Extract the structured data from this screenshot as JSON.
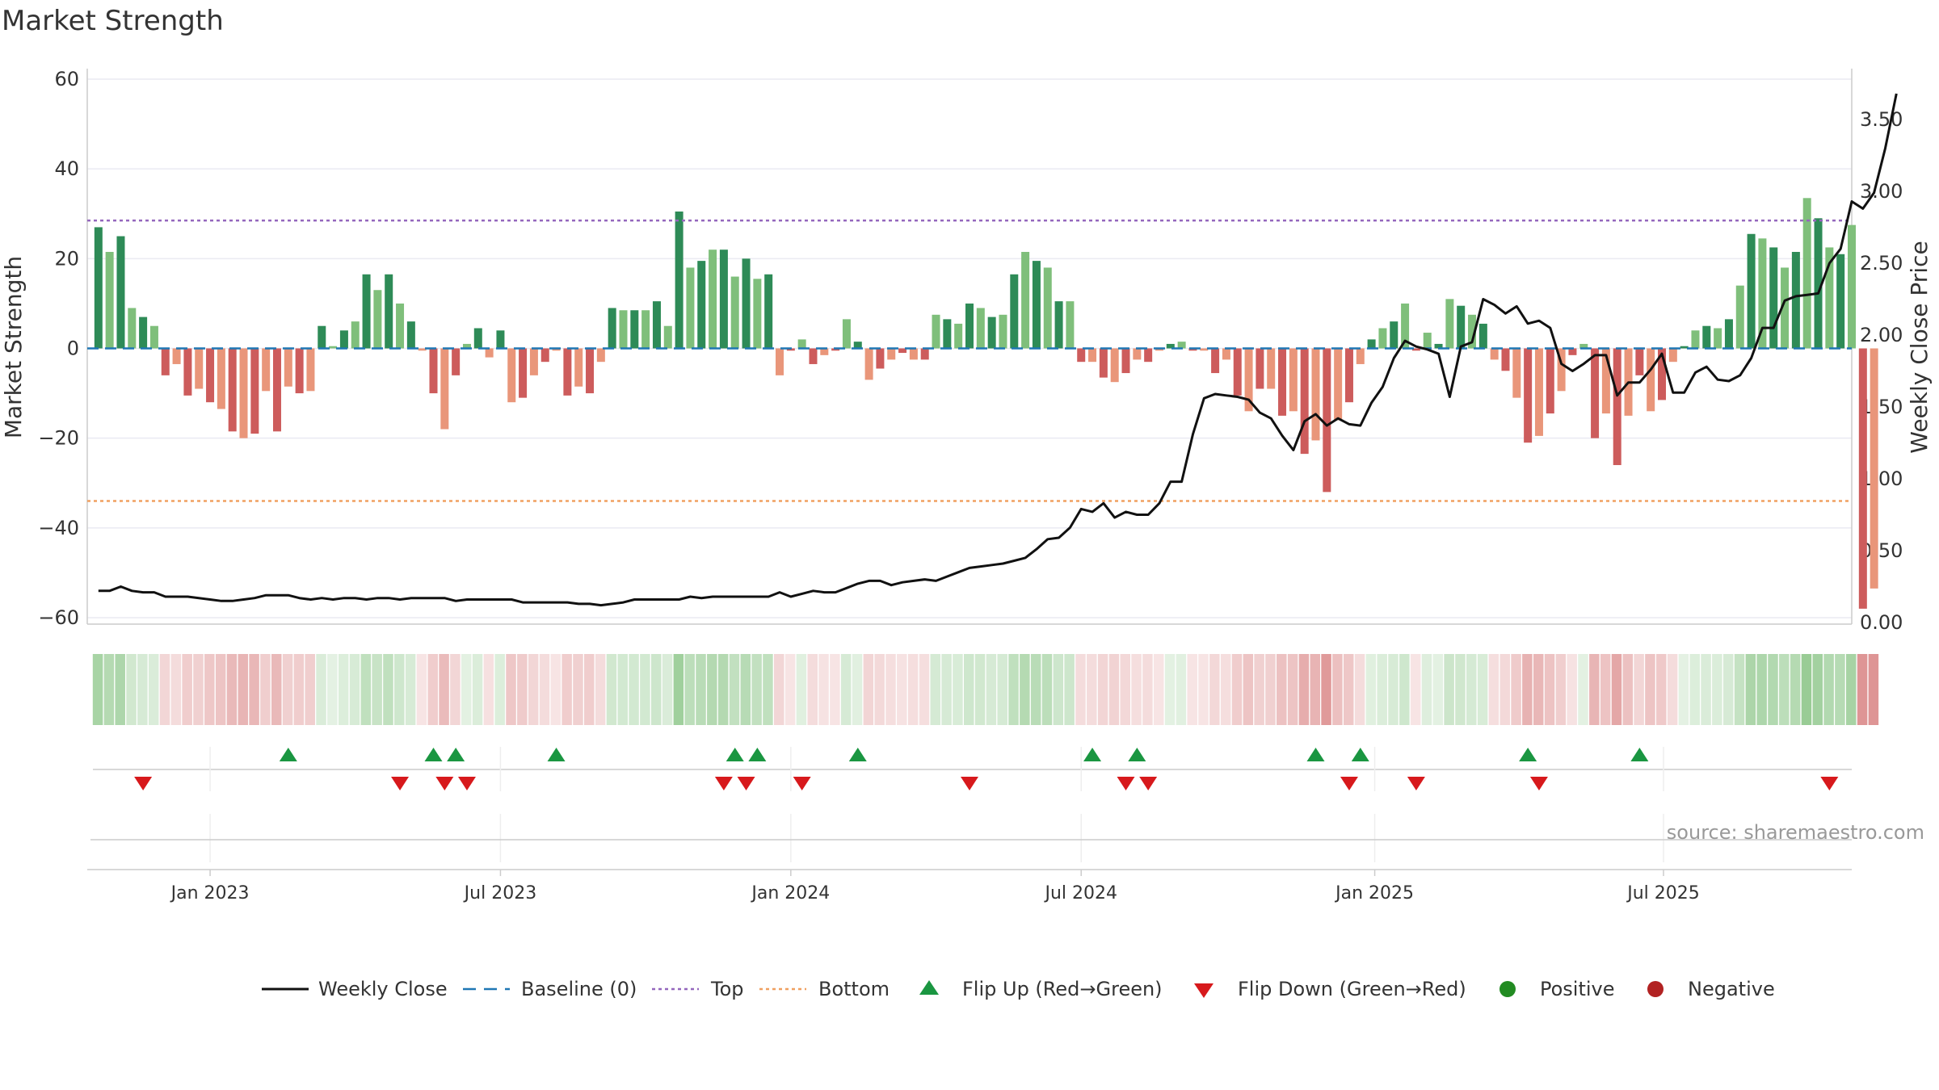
{
  "chart_data": {
    "type": "bar",
    "title": "Market Strength",
    "source_text": "source: sharemaestro.com",
    "left_axis": {
      "label": "Market Strength",
      "range": [
        -60,
        60
      ],
      "ticks": [
        "60",
        "40",
        "20",
        "0",
        "−20",
        "−40",
        "−60"
      ]
    },
    "right_axis": {
      "label": "Weekly Close Price",
      "range": [
        0.0,
        3.8
      ],
      "ticks": [
        "3.50",
        "3.00",
        "2.50",
        "2.00",
        "1.50",
        "1.00",
        "0.50",
        "0.00"
      ]
    },
    "x_axis": {
      "range": [
        "2022-10-17",
        "2025-10-27"
      ],
      "ticks": [
        {
          "label": "Jan 2023",
          "date": "2023-01-02"
        },
        {
          "label": "Jul 2023",
          "date": "2023-07-03"
        },
        {
          "label": "Jan 2024",
          "date": "2024-01-01"
        },
        {
          "label": "Jul 2024",
          "date": "2024-07-01"
        },
        {
          "label": "Jan 2025",
          "date": "2025-01-01"
        },
        {
          "label": "Jul 2025",
          "date": "2025-07-01"
        }
      ]
    },
    "first_week": "2022-10-24",
    "top_level": 28.5,
    "bottom_level": -34,
    "strength": [
      27,
      21.5,
      25,
      9,
      7,
      5,
      -6,
      -3.5,
      -10.5,
      -9,
      -12,
      -13.5,
      -18.5,
      -20,
      -19,
      -9.5,
      -18.5,
      -8.5,
      -10,
      -9.5,
      5,
      0.5,
      4,
      6,
      16.5,
      13,
      16.5,
      10,
      6,
      -0.5,
      -10,
      -18,
      -6,
      1,
      4.5,
      -2,
      4,
      -12,
      -11,
      -6,
      -3,
      -0.5,
      -10.5,
      -8.5,
      -10,
      -3,
      9,
      8.5,
      8.5,
      8.5,
      10.5,
      5,
      30.5,
      18,
      19.5,
      22,
      22,
      16,
      20,
      15.5,
      16.5,
      -6,
      -0.5,
      2,
      -3.5,
      -1.5,
      -0.5,
      6.5,
      1.5,
      -7,
      -4.5,
      -2.5,
      -1,
      -2.5,
      -2.5,
      7.5,
      6.5,
      5.5,
      10,
      9,
      7,
      7.5,
      16.5,
      21.5,
      19.5,
      18,
      10.5,
      10.5,
      -3,
      -3,
      -6.5,
      -7.5,
      -5.5,
      -2.5,
      -3,
      -0.5,
      1,
      1.5,
      -0.5,
      -0.5,
      -5.5,
      -2.5,
      -10.5,
      -14,
      -9,
      -9,
      -15,
      -14,
      -23.5,
      -20.5,
      -32,
      -16,
      -12,
      -3.5,
      2,
      4.5,
      6,
      10,
      -0.5,
      3.5,
      1,
      11,
      9.5,
      7.5,
      5.5,
      -2.5,
      -5,
      -11,
      -21,
      -19.5,
      -14.5,
      -9.5,
      -1.5,
      1,
      -20,
      -14.5,
      -26,
      -15,
      -6,
      -14,
      -11.5,
      -3,
      0.5,
      4,
      5,
      4.5,
      6.5,
      14,
      25.5,
      24.5,
      22.5,
      18,
      21.5,
      33.5,
      29,
      22.5,
      21,
      27.5,
      -58,
      -53.5
    ],
    "close": [
      0.22,
      0.22,
      0.25,
      0.22,
      0.21,
      0.21,
      0.18,
      0.18,
      0.18,
      0.17,
      0.16,
      0.15,
      0.15,
      0.16,
      0.17,
      0.19,
      0.19,
      0.19,
      0.17,
      0.16,
      0.17,
      0.16,
      0.17,
      0.17,
      0.16,
      0.17,
      0.17,
      0.16,
      0.17,
      0.17,
      0.17,
      0.17,
      0.15,
      0.16,
      0.16,
      0.16,
      0.16,
      0.16,
      0.14,
      0.14,
      0.14,
      0.14,
      0.14,
      0.13,
      0.13,
      0.12,
      0.13,
      0.14,
      0.16,
      0.16,
      0.16,
      0.16,
      0.16,
      0.18,
      0.17,
      0.18,
      0.18,
      0.18,
      0.18,
      0.18,
      0.18,
      0.21,
      0.18,
      0.2,
      0.22,
      0.21,
      0.21,
      0.24,
      0.27,
      0.29,
      0.29,
      0.26,
      0.28,
      0.29,
      0.3,
      0.29,
      0.32,
      0.35,
      0.38,
      0.39,
      0.4,
      0.41,
      0.43,
      0.45,
      0.51,
      0.58,
      0.59,
      0.66,
      0.79,
      0.77,
      0.83,
      0.73,
      0.77,
      0.75,
      0.75,
      0.83,
      0.98,
      0.98,
      1.31,
      1.56,
      1.59,
      1.58,
      1.57,
      1.55,
      1.46,
      1.42,
      1.3,
      1.2,
      1.4,
      1.45,
      1.37,
      1.42,
      1.38,
      1.37,
      1.53,
      1.64,
      1.84,
      1.96,
      1.92,
      1.9,
      1.87,
      1.57,
      1.92,
      1.95,
      2.25,
      2.21,
      2.15,
      2.2,
      2.08,
      2.1,
      2.05,
      1.8,
      1.75,
      1.8,
      1.86,
      1.86,
      1.58,
      1.67,
      1.67,
      1.76,
      1.87,
      1.6,
      1.6,
      1.74,
      1.78,
      1.69,
      1.68,
      1.72,
      1.84,
      2.05,
      2.05,
      2.24,
      2.27,
      2.28,
      2.29,
      2.5,
      2.6,
      2.93,
      2.88,
      2.99,
      3.3,
      3.68
    ],
    "flip_up_dates": [
      "2023-02-20",
      "2023-05-22",
      "2023-06-05",
      "2023-08-07",
      "2023-11-27",
      "2023-12-11",
      "2024-02-12",
      "2024-07-08",
      "2024-08-05",
      "2024-11-25",
      "2024-12-23",
      "2025-04-07",
      "2025-06-16"
    ],
    "flip_down_dates": [
      "2022-11-21",
      "2023-05-01",
      "2023-05-29",
      "2023-06-12",
      "2023-11-20",
      "2023-12-04",
      "2024-01-08",
      "2024-04-22",
      "2024-07-29",
      "2024-08-12",
      "2024-12-16",
      "2025-01-27",
      "2025-04-14",
      "2025-10-13"
    ],
    "legend": [
      {
        "label": "Weekly Close",
        "key": "line"
      },
      {
        "label": "Baseline (0)",
        "key": "baseline"
      },
      {
        "label": "Top",
        "key": "top"
      },
      {
        "label": "Bottom",
        "key": "bottom"
      },
      {
        "label": "Flip Up (Red→Green)",
        "key": "flipup"
      },
      {
        "label": "Flip Down (Green→Red)",
        "key": "flipdown"
      },
      {
        "label": "Positive",
        "key": "pos"
      },
      {
        "label": "Negative",
        "key": "neg"
      }
    ],
    "colors": {
      "pos_strong": "#2e8b57",
      "pos_light": "#7fbf7b",
      "neg_strong": "#cd5c5c",
      "neg_light": "#e9967a",
      "line": "#111111",
      "baseline": "#1f77b4",
      "top": "#9467bd",
      "bottom": "#f0a060",
      "flip_up": "#1a9641",
      "flip_down": "#d7191c",
      "positive_dot": "#228b22",
      "negative_dot": "#b22222"
    },
    "grid": true,
    "legend_position": "bottom"
  }
}
